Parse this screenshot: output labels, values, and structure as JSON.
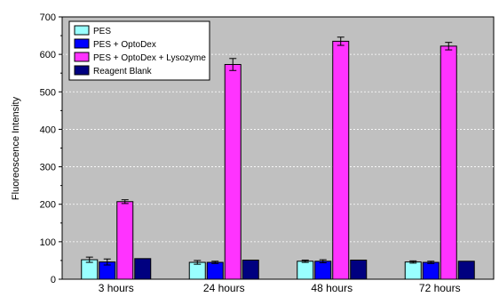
{
  "chart_data": {
    "type": "bar",
    "title": "",
    "xlabel": "",
    "ylabel": "Fluoreoscence Intensity",
    "ylim": [
      0,
      700
    ],
    "yticks": [
      0,
      100,
      200,
      300,
      400,
      500,
      600,
      700
    ],
    "grid": true,
    "legend_position": "top-left",
    "background": "#c0c0c0",
    "categories": [
      "3 hours",
      "24 hours",
      "48 hours",
      "72 hours"
    ],
    "series": [
      {
        "name": "PES",
        "color": "#99ffff",
        "values": [
          52,
          45,
          48,
          46
        ],
        "errors": [
          7,
          5,
          3,
          3
        ]
      },
      {
        "name": "PES + OptoDex",
        "color": "#0000ff",
        "values": [
          46,
          45,
          48,
          45
        ],
        "errors": [
          8,
          3,
          4,
          3
        ]
      },
      {
        "name": "PES + OptoDex + Lysozyme",
        "color": "#ff33ff",
        "values": [
          207,
          573,
          635,
          622
        ],
        "errors": [
          5,
          16,
          11,
          10
        ]
      },
      {
        "name": "Reagent Blank",
        "color": "#000080",
        "values": [
          55,
          51,
          51,
          48
        ],
        "errors": [
          0,
          0,
          0,
          0
        ]
      }
    ]
  }
}
